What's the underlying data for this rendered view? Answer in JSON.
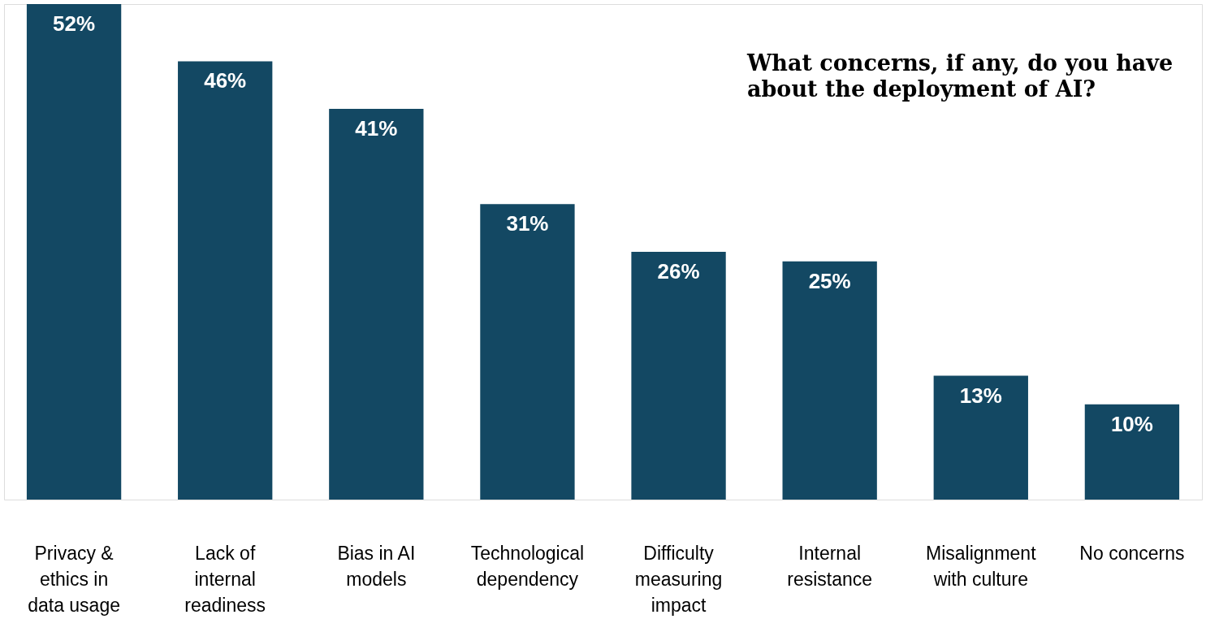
{
  "chart_data": {
    "type": "bar",
    "title": "What concerns, if any, do you have about the deployment of AI?",
    "categories": [
      "Privacy & ethics in data usage",
      "Lack of internal readiness",
      "Bias in AI models",
      "Technological dependency",
      "Difficulty measuring impact",
      "Internal resistance",
      "Misalignment with culture",
      "No concerns"
    ],
    "values": [
      52,
      46,
      41,
      31,
      26,
      25,
      13,
      10
    ],
    "color": "#134863",
    "value_labels": [
      "52%",
      "46%",
      "41%",
      "31%",
      "26%",
      "25%",
      "13%",
      "10%"
    ],
    "grid": false
  }
}
